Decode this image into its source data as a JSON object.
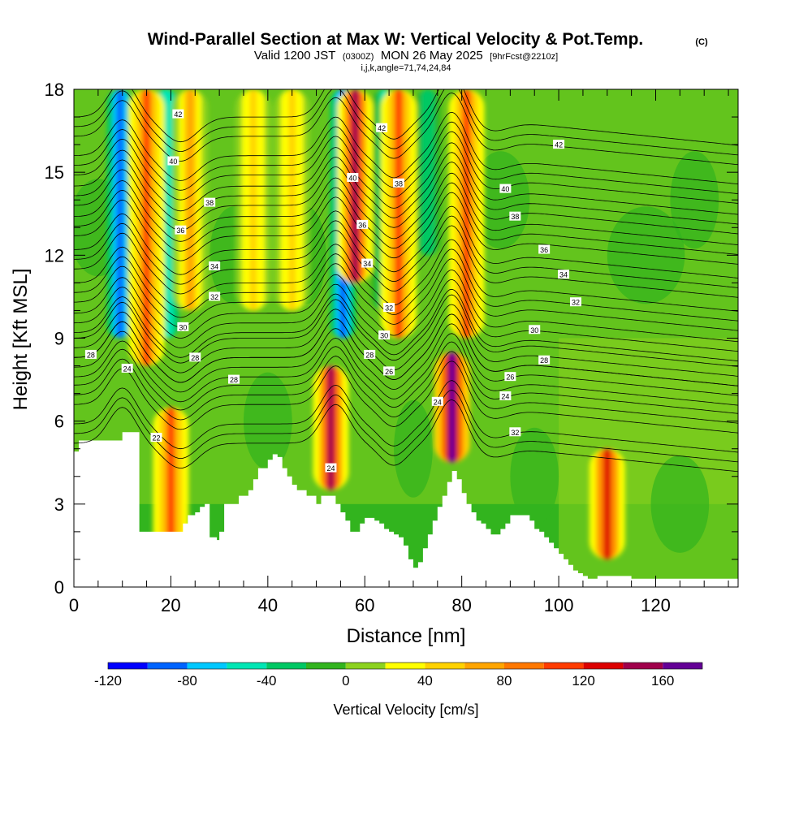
{
  "chart_data": {
    "type": "heatmap",
    "title": "Wind-Parallel Section at Max W: Vertical Velocity & Pot.Temp.",
    "title_mark": "(C)",
    "subtitle_parts": [
      "Valid 1200 JST",
      "(0300Z)",
      "MON 26 May 2025",
      "[9hrFcst@2210z]"
    ],
    "info_line": "i,j,k,angle=71,74,24,84",
    "xlabel": "Distance [nm]",
    "ylabel": "Height [Kft MSL]",
    "xlim": [
      0,
      137
    ],
    "ylim": [
      0,
      18
    ],
    "xticks": [
      "0",
      "20",
      "40",
      "60",
      "80",
      "100",
      "120"
    ],
    "yticks": [
      "0",
      "3",
      "6",
      "9",
      "12",
      "15",
      "18"
    ],
    "colorbar": {
      "title": "Vertical Velocity [cm/s]",
      "range": [
        -120,
        180
      ],
      "labels": [
        "-120",
        "-80",
        "-40",
        "0",
        "40",
        "80",
        "120",
        "160"
      ],
      "colors": [
        "#0000ff",
        "#0064ff",
        "#00c8ff",
        "#00e6b4",
        "#00c864",
        "#32b41e",
        "#8cd21e",
        "#ffff00",
        "#ffd200",
        "#ffa500",
        "#ff7800",
        "#ff3c00",
        "#dc0000",
        "#a0004b",
        "#640096"
      ]
    },
    "terrain_profile": {
      "x": [
        0,
        1,
        7,
        10,
        13,
        13.5,
        16,
        22,
        22.5,
        23.5,
        24,
        25,
        26,
        27,
        28,
        29.5,
        30,
        31,
        33,
        34,
        36,
        37,
        38,
        40,
        41,
        42,
        43,
        44,
        45,
        46,
        48,
        49,
        50,
        51,
        52,
        53,
        54,
        55,
        56,
        57,
        58,
        59,
        60,
        61,
        62,
        63,
        64,
        65,
        66,
        67,
        68,
        69,
        70,
        71,
        72,
        73,
        74,
        75,
        76,
        77,
        78,
        79,
        80,
        81,
        82,
        83,
        84,
        85,
        86,
        87,
        88,
        89,
        90,
        91,
        92,
        93,
        94,
        95,
        96,
        97,
        98,
        99,
        100,
        101,
        102,
        103,
        104,
        105,
        106,
        107,
        108,
        110,
        115,
        120,
        125,
        130,
        137
      ],
      "y": [
        4.9,
        5.3,
        5.3,
        5.6,
        5.6,
        2.0,
        2.0,
        2.0,
        2.3,
        2.6,
        2.6,
        2.7,
        2.9,
        3.0,
        1.8,
        1.7,
        2.0,
        3.0,
        3.0,
        3.3,
        3.5,
        3.9,
        4.3,
        4.6,
        4.8,
        4.7,
        4.3,
        4.0,
        3.7,
        3.5,
        3.3,
        3.3,
        3.0,
        3.3,
        3.3,
        3.3,
        3.0,
        2.7,
        2.4,
        2.0,
        2.0,
        2.3,
        2.5,
        2.5,
        2.4,
        2.3,
        2.1,
        2.0,
        1.9,
        1.8,
        1.5,
        1.0,
        0.7,
        0.9,
        1.4,
        1.9,
        2.4,
        2.9,
        3.3,
        3.8,
        4.2,
        3.9,
        3.4,
        3.0,
        2.7,
        2.4,
        2.3,
        2.1,
        1.9,
        1.9,
        2.1,
        2.3,
        2.6,
        2.6,
        2.6,
        2.6,
        2.4,
        2.1,
        2.0,
        1.8,
        1.6,
        1.4,
        1.2,
        1.0,
        0.8,
        0.6,
        0.5,
        0.4,
        0.3,
        0.3,
        0.4,
        0.4,
        0.3,
        0.3,
        0.3,
        0.3,
        0.3
      ],
      "description": "white area below profile = below ground"
    },
    "updraft_bands": [
      {
        "x": 15,
        "from": 8,
        "to": 18,
        "peak": 100
      },
      {
        "x": 20,
        "from": 1,
        "to": 6.5,
        "peak": 100
      },
      {
        "x": 24,
        "from": 10,
        "to": 18,
        "peak": 60
      },
      {
        "x": 37,
        "from": 10,
        "to": 18,
        "peak": 40
      },
      {
        "x": 45,
        "from": 10,
        "to": 18,
        "peak": 50
      },
      {
        "x": 53,
        "from": 3.5,
        "to": 8,
        "peak": 140
      },
      {
        "x": 58,
        "from": 11,
        "to": 18,
        "peak": 140
      },
      {
        "x": 67,
        "from": 9,
        "to": 18,
        "peak": 100
      },
      {
        "x": 78,
        "from": 4.5,
        "to": 8.5,
        "peak": 160
      },
      {
        "x": 81,
        "from": 9,
        "to": 18,
        "peak": 100
      },
      {
        "x": 110,
        "from": 1,
        "to": 5,
        "peak": 120
      }
    ],
    "downdraft_bands": [
      {
        "x": 9.5,
        "from": 9,
        "to": 18,
        "peak": -100
      },
      {
        "x": 19,
        "from": 9,
        "to": 18,
        "peak": -60
      },
      {
        "x": 55.5,
        "from": 9,
        "to": 18,
        "peak": -100
      },
      {
        "x": 64,
        "from": 10,
        "to": 18,
        "peak": -50
      },
      {
        "x": 73,
        "from": 12,
        "to": 18,
        "peak": -40
      }
    ],
    "theta_contours": {
      "units": "pot.temp",
      "levels": [
        22,
        24,
        26,
        28,
        30,
        32,
        34,
        36,
        38,
        40,
        42
      ],
      "labels": [
        {
          "text": "42",
          "x": 21.5,
          "y": 17.1
        },
        {
          "text": "42",
          "x": 63.5,
          "y": 16.6
        },
        {
          "text": "42",
          "x": 100,
          "y": 16.0
        },
        {
          "text": "40",
          "x": 20.5,
          "y": 15.4
        },
        {
          "text": "40",
          "x": 57.5,
          "y": 14.8
        },
        {
          "text": "40",
          "x": 89,
          "y": 14.4
        },
        {
          "text": "38",
          "x": 67,
          "y": 14.6
        },
        {
          "text": "38",
          "x": 28,
          "y": 13.9
        },
        {
          "text": "38",
          "x": 91,
          "y": 13.4
        },
        {
          "text": "36",
          "x": 22,
          "y": 12.9
        },
        {
          "text": "36",
          "x": 59.5,
          "y": 13.1
        },
        {
          "text": "36",
          "x": 97,
          "y": 12.2
        },
        {
          "text": "34",
          "x": 29,
          "y": 11.6
        },
        {
          "text": "34",
          "x": 60.5,
          "y": 11.7
        },
        {
          "text": "34",
          "x": 101,
          "y": 11.3
        },
        {
          "text": "32",
          "x": 29,
          "y": 10.5
        },
        {
          "text": "32",
          "x": 65,
          "y": 10.1
        },
        {
          "text": "32",
          "x": 103.5,
          "y": 10.3
        },
        {
          "text": "30",
          "x": 22.5,
          "y": 9.4
        },
        {
          "text": "30",
          "x": 64,
          "y": 9.1
        },
        {
          "text": "30",
          "x": 95,
          "y": 9.3
        },
        {
          "text": "28",
          "x": 3.5,
          "y": 8.4
        },
        {
          "text": "28",
          "x": 25,
          "y": 8.3
        },
        {
          "text": "28",
          "x": 61,
          "y": 8.4
        },
        {
          "text": "28",
          "x": 97,
          "y": 8.2
        },
        {
          "text": "28",
          "x": 33,
          "y": 7.5
        },
        {
          "text": "26",
          "x": 90,
          "y": 7.6
        },
        {
          "text": "26",
          "x": 65,
          "y": 7.8
        },
        {
          "text": "24",
          "x": 11,
          "y": 7.9
        },
        {
          "text": "24",
          "x": 75,
          "y": 6.7
        },
        {
          "text": "24",
          "x": 89,
          "y": 6.9
        },
        {
          "text": "24",
          "x": 53,
          "y": 4.3
        },
        {
          "text": "22",
          "x": 17,
          "y": 5.4
        },
        {
          "text": "32",
          "x": 91,
          "y": 5.6
        }
      ]
    }
  }
}
